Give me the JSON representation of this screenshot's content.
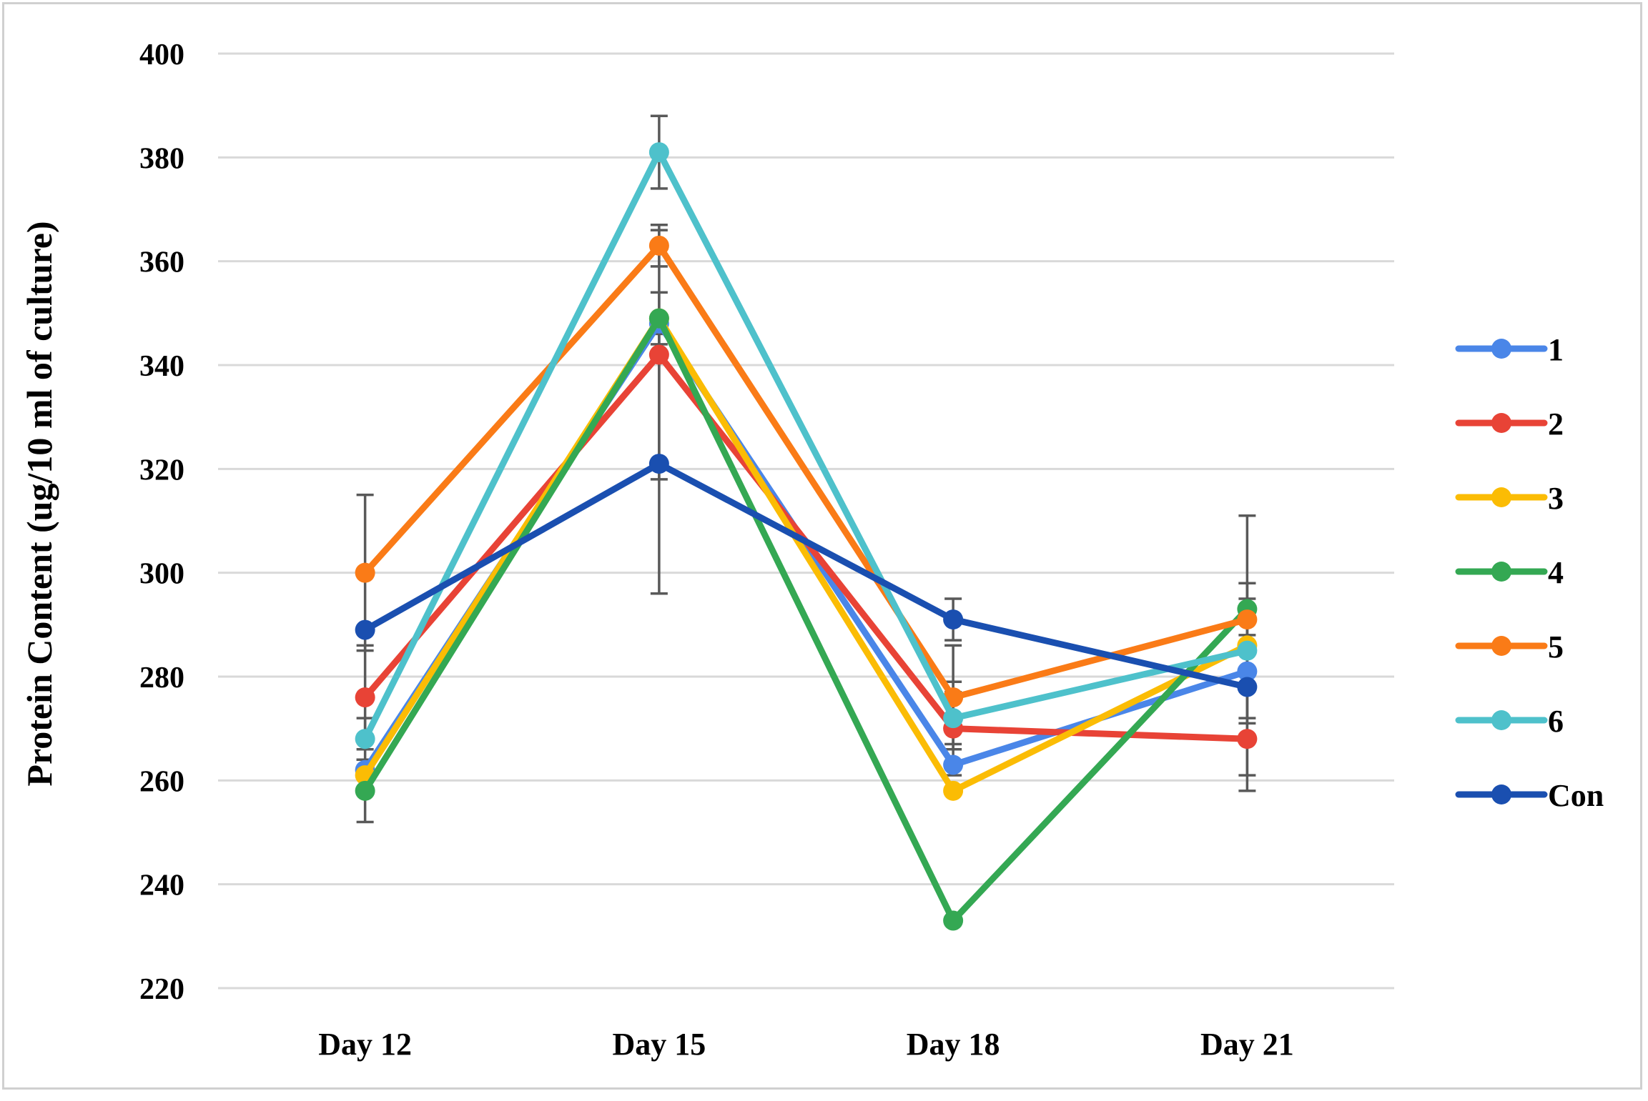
{
  "chart_data": {
    "type": "line",
    "title": "",
    "xlabel": "",
    "ylabel": "Protein Content (ug/10 ml of culture)",
    "categories": [
      "Day 12",
      "Day 15",
      "Day 18",
      "Day 21"
    ],
    "ylim": [
      220,
      400
    ],
    "yticks": [
      220,
      240,
      260,
      280,
      300,
      320,
      340,
      360,
      380,
      400
    ],
    "grid": true,
    "legend_position": "right",
    "series": [
      {
        "name": "1",
        "color": "#4a86e8",
        "values": [
          262,
          348,
          263,
          281
        ],
        "errors": [
          null,
          null,
          null,
          null
        ]
      },
      {
        "name": "2",
        "color": "#e84336",
        "values": [
          276,
          342,
          270,
          268
        ],
        "errors": [
          10,
          24,
          9,
          10
        ]
      },
      {
        "name": "3",
        "color": "#fbbc04",
        "values": [
          261,
          349,
          258,
          286
        ],
        "errors": [
          null,
          null,
          null,
          null
        ]
      },
      {
        "name": "4",
        "color": "#34a853",
        "values": [
          258,
          349,
          233,
          293
        ],
        "errors": [
          6,
          5,
          null,
          5
        ]
      },
      {
        "name": "5",
        "color": "#fa7b17",
        "values": [
          300,
          363,
          276,
          291
        ],
        "errors": [
          15,
          4,
          10,
          20
        ]
      },
      {
        "name": "6",
        "color": "#4ec1cb",
        "values": [
          268,
          381,
          272,
          285
        ],
        "errors": [
          4,
          7,
          5,
          13
        ]
      },
      {
        "name": "Con",
        "color": "#1a4fb0",
        "values": [
          289,
          321,
          291,
          278
        ],
        "errors": [
          null,
          25,
          4,
          17
        ]
      }
    ]
  }
}
